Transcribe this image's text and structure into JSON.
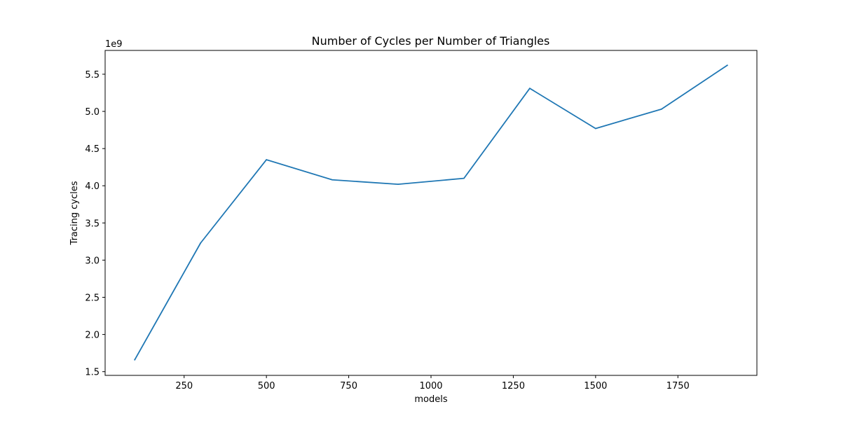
{
  "chart_data": {
    "type": "line",
    "title": "Number of Cycles per Number of Triangles",
    "xlabel": "models",
    "ylabel": "Tracing cycles",
    "y_offset_label": "1e9",
    "y_multiplier": 1000000000,
    "xlim": [
      10,
      1990
    ],
    "ylim": [
      1.45,
      5.82
    ],
    "x_ticks": [
      {
        "value": 250,
        "label": "250"
      },
      {
        "value": 500,
        "label": "500"
      },
      {
        "value": 750,
        "label": "750"
      },
      {
        "value": 1000,
        "label": "1000"
      },
      {
        "value": 1250,
        "label": "1250"
      },
      {
        "value": 1500,
        "label": "1500"
      },
      {
        "value": 1750,
        "label": "1750"
      }
    ],
    "y_ticks": [
      {
        "value": 1.5,
        "label": "1.5"
      },
      {
        "value": 2.0,
        "label": "2.0"
      },
      {
        "value": 2.5,
        "label": "2.5"
      },
      {
        "value": 3.0,
        "label": "3.0"
      },
      {
        "value": 3.5,
        "label": "3.5"
      },
      {
        "value": 4.0,
        "label": "4.0"
      },
      {
        "value": 4.5,
        "label": "4.5"
      },
      {
        "value": 5.0,
        "label": "5.0"
      },
      {
        "value": 5.5,
        "label": "5.5"
      }
    ],
    "grid": false,
    "series": [
      {
        "color": "#1f77b4",
        "x": [
          100,
          300,
          500,
          700,
          900,
          1100,
          1300,
          1500,
          1700,
          1900
        ],
        "y": [
          1.66,
          3.23,
          4.35,
          4.08,
          4.02,
          4.1,
          5.31,
          4.77,
          5.03,
          5.62
        ]
      }
    ]
  }
}
